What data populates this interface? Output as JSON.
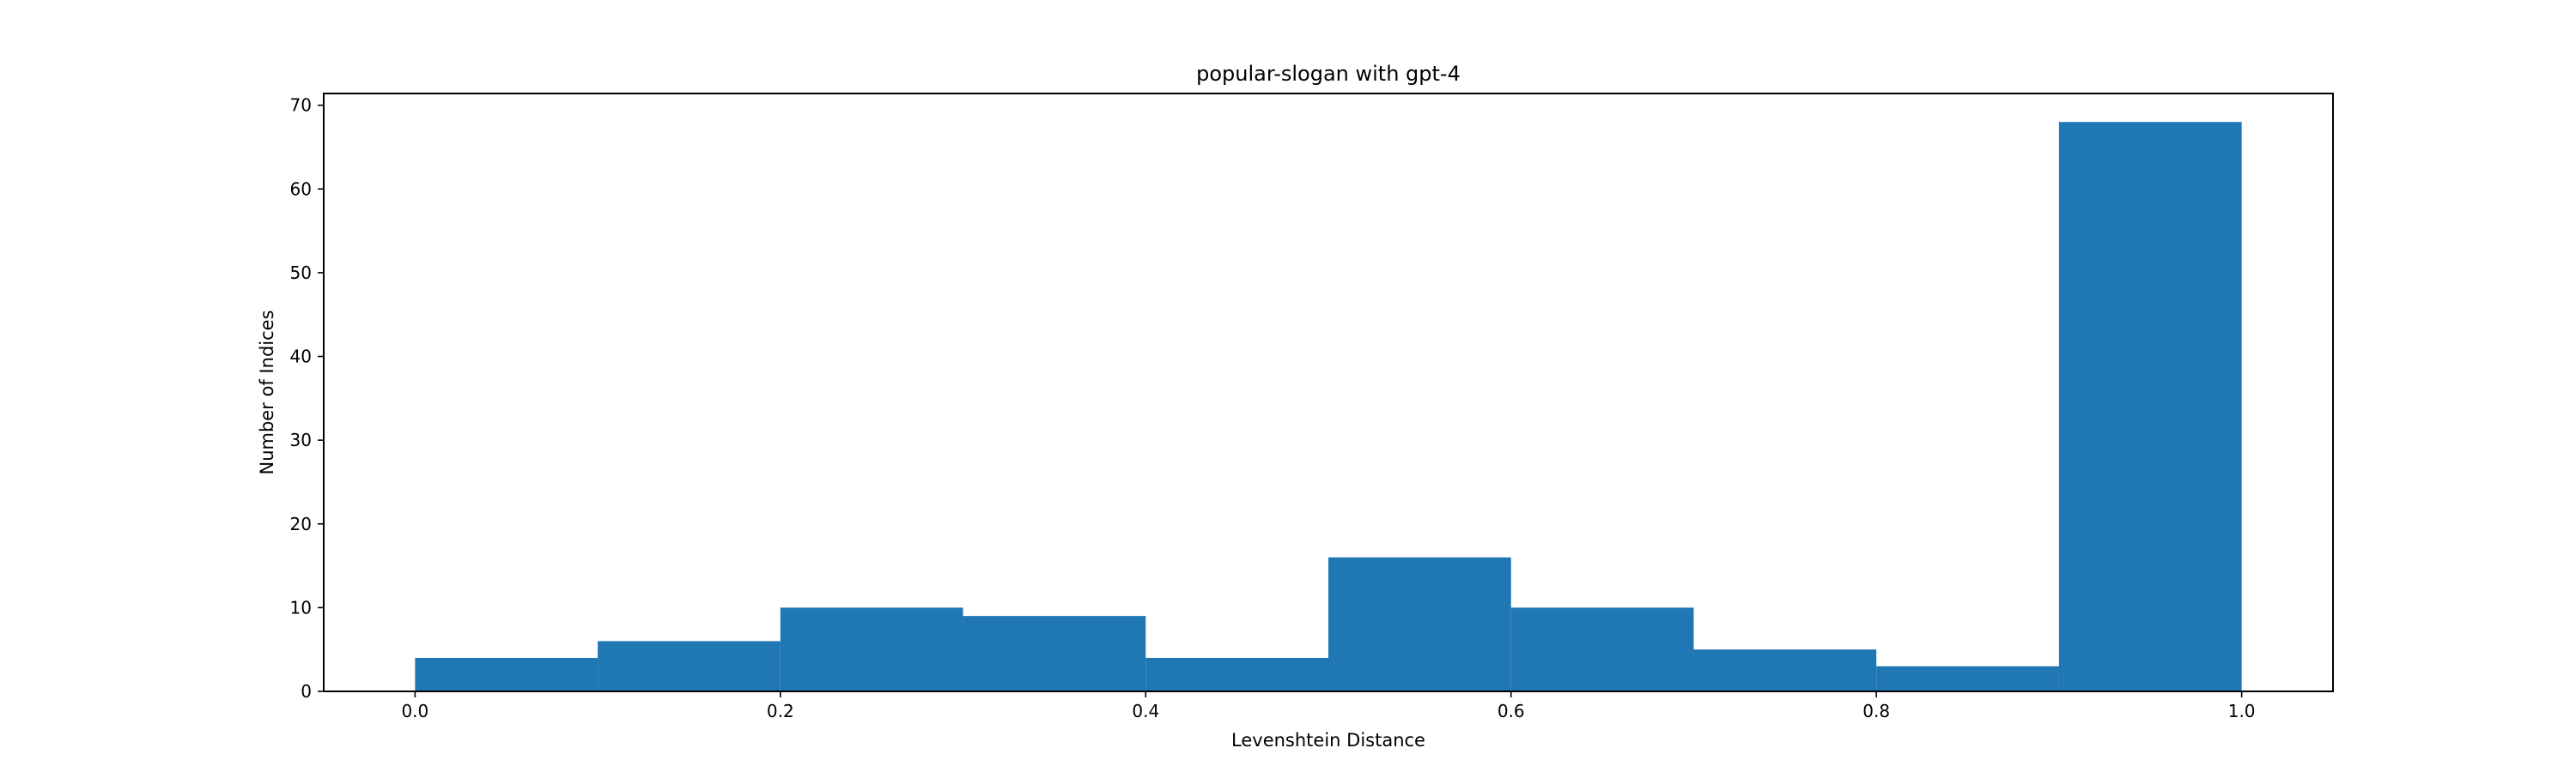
{
  "chart_data": {
    "type": "bar",
    "title": "popular-slogan with gpt-4",
    "xlabel": "Levenshtein Distance",
    "ylabel": "Number of Indices",
    "bins": [
      {
        "x0": 0.0,
        "x1": 0.1,
        "value": 4
      },
      {
        "x0": 0.1,
        "x1": 0.2,
        "value": 6
      },
      {
        "x0": 0.2,
        "x1": 0.3,
        "value": 10
      },
      {
        "x0": 0.3,
        "x1": 0.4,
        "value": 9
      },
      {
        "x0": 0.4,
        "x1": 0.5,
        "value": 4
      },
      {
        "x0": 0.5,
        "x1": 0.6,
        "value": 16
      },
      {
        "x0": 0.6,
        "x1": 0.7,
        "value": 10
      },
      {
        "x0": 0.7,
        "x1": 0.8,
        "value": 5
      },
      {
        "x0": 0.8,
        "x1": 0.9,
        "value": 3
      },
      {
        "x0": 0.9,
        "x1": 1.0,
        "value": 68
      }
    ],
    "xlim": [
      -0.05,
      1.05
    ],
    "ylim": [
      0,
      71.4
    ],
    "x_ticks": [
      0.0,
      0.2,
      0.4,
      0.6,
      0.8,
      1.0
    ],
    "x_tick_labels": [
      "0.0",
      "0.2",
      "0.4",
      "0.6",
      "0.8",
      "1.0"
    ],
    "y_ticks": [
      0,
      10,
      20,
      30,
      40,
      50,
      60,
      70
    ],
    "y_tick_labels": [
      "0",
      "10",
      "20",
      "30",
      "40",
      "50",
      "60",
      "70"
    ],
    "bar_color": "#1f77b4",
    "grid": false,
    "legend": "none"
  }
}
